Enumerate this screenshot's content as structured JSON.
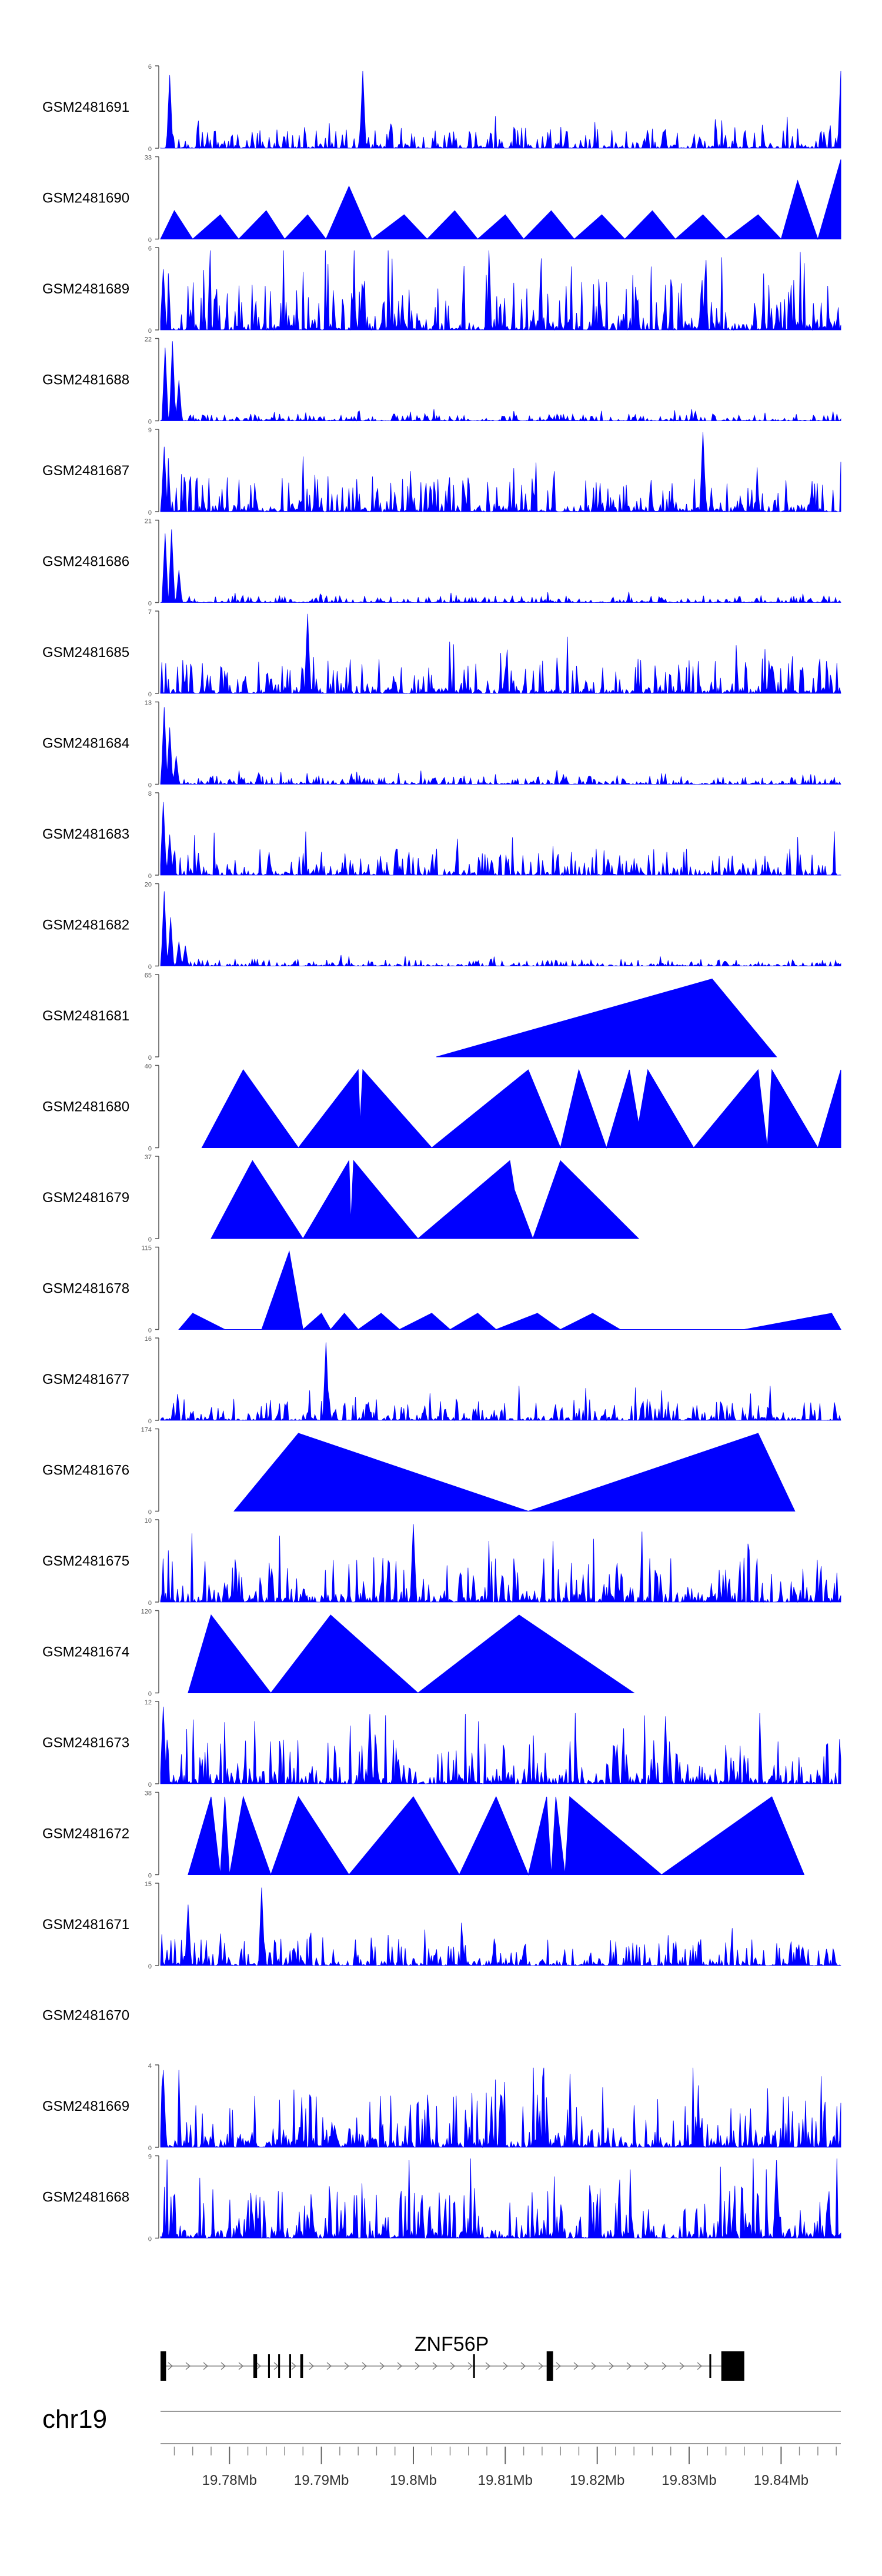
{
  "chart_data": {
    "type": "area",
    "title": "",
    "chromosome": "chr19",
    "xlim": [
      19.7725,
      19.8465
    ],
    "xlabel": "",
    "ylabel": "",
    "grid": false,
    "colors": {
      "signal": "#0000ff",
      "axis": "#555555",
      "gene": "#000000",
      "text": "#000000"
    },
    "xticks": {
      "values": [
        19.78,
        19.79,
        19.8,
        19.81,
        19.82,
        19.83,
        19.84
      ],
      "labels": [
        "19.78Mb",
        "19.79Mb",
        "19.8Mb",
        "19.81Mb",
        "19.82Mb",
        "19.83Mb",
        "19.84Mb"
      ],
      "minor_step": 0.002
    },
    "gene": {
      "name": "ZNF56P",
      "start": 19.7725,
      "end": 19.8335,
      "strand": "+",
      "exons": [
        [
          19.7725,
          19.7731
        ],
        [
          19.7826,
          19.783
        ],
        [
          19.7842,
          19.7844
        ],
        [
          19.7853,
          19.7855
        ],
        [
          19.7865,
          19.7867
        ],
        [
          19.7877,
          19.788
        ],
        [
          19.8065,
          19.8067
        ],
        [
          19.8145,
          19.8152
        ],
        [
          19.8322,
          19.8324
        ],
        [
          19.8335,
          19.8347
        ],
        [
          19.8347,
          19.836
        ]
      ]
    },
    "series": [
      {
        "name": "GSM2481691",
        "kind": "noise",
        "ymax": 6,
        "seed": 11,
        "base": 0.12,
        "peaks": [
          [
            19.7735,
            0.9
          ],
          [
            19.7945,
            0.95
          ],
          [
            19.8465,
            0.95
          ]
        ]
      },
      {
        "name": "GSM2481690",
        "kind": "triangles",
        "ymax": 33,
        "peaks": [
          [
            19.7725,
            0.0
          ],
          [
            19.774,
            0.35
          ],
          [
            19.776,
            0.0
          ],
          [
            19.779,
            0.3
          ],
          [
            19.781,
            0.0
          ],
          [
            19.784,
            0.35
          ],
          [
            19.786,
            0.0
          ],
          [
            19.7885,
            0.3
          ],
          [
            19.7905,
            0.0
          ],
          [
            19.793,
            0.65
          ],
          [
            19.7955,
            0.0
          ],
          [
            19.799,
            0.3
          ],
          [
            19.8015,
            0.0
          ],
          [
            19.8045,
            0.35
          ],
          [
            19.807,
            0.0
          ],
          [
            19.81,
            0.3
          ],
          [
            19.812,
            0.0
          ],
          [
            19.815,
            0.35
          ],
          [
            19.8175,
            0.0
          ],
          [
            19.8205,
            0.3
          ],
          [
            19.823,
            0.0
          ],
          [
            19.826,
            0.35
          ],
          [
            19.8285,
            0.0
          ],
          [
            19.8315,
            0.3
          ],
          [
            19.834,
            0.0
          ],
          [
            19.8375,
            0.3
          ],
          [
            19.84,
            0.0
          ],
          [
            19.8418,
            0.72
          ],
          [
            19.844,
            0.0
          ],
          [
            19.8465,
            0.98
          ]
        ]
      },
      {
        "name": "GSM2481689",
        "kind": "noise",
        "ymax": 6,
        "seed": 23,
        "base": 0.3,
        "peaks": [
          [
            19.7728,
            0.75
          ]
        ]
      },
      {
        "name": "GSM2481688",
        "kind": "noise",
        "ymax": 22,
        "seed": 37,
        "base": 0.04,
        "peaks": [
          [
            19.773,
            0.9
          ],
          [
            19.7738,
            0.98
          ],
          [
            19.7745,
            0.5
          ]
        ]
      },
      {
        "name": "GSM2481687",
        "kind": "noise",
        "ymax": 9,
        "seed": 41,
        "base": 0.2,
        "peaks": [
          [
            19.7729,
            0.8
          ],
          [
            19.8315,
            0.98
          ]
        ]
      },
      {
        "name": "GSM2481686",
        "kind": "noise",
        "ymax": 21,
        "seed": 53,
        "base": 0.04,
        "peaks": [
          [
            19.773,
            0.85
          ],
          [
            19.7737,
            0.9
          ],
          [
            19.7745,
            0.4
          ]
        ]
      },
      {
        "name": "GSM2481685",
        "kind": "noise",
        "ymax": 7,
        "seed": 61,
        "base": 0.2,
        "peaks": [
          [
            19.7885,
            0.98
          ]
        ]
      },
      {
        "name": "GSM2481684",
        "kind": "noise",
        "ymax": 13,
        "seed": 71,
        "base": 0.05,
        "peaks": [
          [
            19.7729,
            0.95
          ],
          [
            19.7735,
            0.7
          ],
          [
            19.7742,
            0.35
          ]
        ]
      },
      {
        "name": "GSM2481683",
        "kind": "noise",
        "ymax": 8,
        "seed": 83,
        "base": 0.15,
        "peaks": [
          [
            19.7728,
            0.9
          ],
          [
            19.7735,
            0.5
          ]
        ]
      },
      {
        "name": "GSM2481682",
        "kind": "noise",
        "ymax": 20,
        "seed": 97,
        "base": 0.04,
        "peaks": [
          [
            19.7729,
            0.92
          ],
          [
            19.7736,
            0.6
          ],
          [
            19.7745,
            0.3
          ],
          [
            19.7752,
            0.25
          ]
        ]
      },
      {
        "name": "GSM2481681",
        "kind": "triangles",
        "ymax": 65,
        "peaks": [
          [
            19.8025,
            0.0
          ],
          [
            19.8325,
            0.96
          ],
          [
            19.8395,
            0.0
          ]
        ]
      },
      {
        "name": "GSM2481680",
        "kind": "triangles",
        "ymax": 40,
        "peaks": [
          [
            19.777,
            0.0
          ],
          [
            19.7815,
            0.96
          ],
          [
            19.7875,
            0.0
          ],
          [
            19.794,
            0.96
          ],
          [
            19.7942,
            0.3
          ],
          [
            19.7945,
            0.96
          ],
          [
            19.802,
            0.0
          ],
          [
            19.8125,
            0.96
          ],
          [
            19.816,
            0.0
          ],
          [
            19.818,
            0.96
          ],
          [
            19.821,
            0.0
          ],
          [
            19.8235,
            0.96
          ],
          [
            19.8245,
            0.3
          ],
          [
            19.8255,
            0.96
          ],
          [
            19.8305,
            0.0
          ],
          [
            19.8375,
            0.96
          ],
          [
            19.8385,
            0.0
          ],
          [
            19.839,
            0.96
          ],
          [
            19.844,
            0.0
          ],
          [
            19.8465,
            0.96
          ]
        ]
      },
      {
        "name": "GSM2481679",
        "kind": "triangles",
        "ymax": 37,
        "peaks": [
          [
            19.778,
            0.0
          ],
          [
            19.7825,
            0.96
          ],
          [
            19.788,
            0.0
          ],
          [
            19.793,
            0.96
          ],
          [
            19.7932,
            0.2
          ],
          [
            19.7935,
            0.96
          ],
          [
            19.8005,
            0.0
          ],
          [
            19.8105,
            0.96
          ],
          [
            19.811,
            0.6
          ],
          [
            19.813,
            0.0
          ],
          [
            19.816,
            0.96
          ],
          [
            19.8245,
            0.0
          ]
        ]
      },
      {
        "name": "GSM2481678",
        "kind": "triangles",
        "ymax": 115,
        "peaks": [
          [
            19.7745,
            0.0
          ],
          [
            19.776,
            0.2
          ],
          [
            19.7795,
            0.0
          ],
          [
            19.7835,
            0.0
          ],
          [
            19.7865,
            0.96
          ],
          [
            19.788,
            0.0
          ],
          [
            19.79,
            0.2
          ],
          [
            19.791,
            0.0
          ],
          [
            19.7925,
            0.2
          ],
          [
            19.794,
            0.0
          ],
          [
            19.7965,
            0.2
          ],
          [
            19.7985,
            0.0
          ],
          [
            19.802,
            0.2
          ],
          [
            19.804,
            0.0
          ],
          [
            19.807,
            0.2
          ],
          [
            19.809,
            0.0
          ],
          [
            19.8135,
            0.2
          ],
          [
            19.816,
            0.0
          ],
          [
            19.8195,
            0.2
          ],
          [
            19.8225,
            0.0
          ],
          [
            19.836,
            0.0
          ],
          [
            19.8455,
            0.2
          ],
          [
            19.8465,
            0.0
          ]
        ]
      },
      {
        "name": "GSM2481677",
        "kind": "noise",
        "ymax": 16,
        "seed": 109,
        "base": 0.12,
        "peaks": [
          [
            19.7905,
            0.96
          ]
        ]
      },
      {
        "name": "GSM2481676",
        "kind": "triangles",
        "ymax": 174,
        "peaks": [
          [
            19.7805,
            0.0
          ],
          [
            19.7875,
            0.96
          ],
          [
            19.8125,
            0.0
          ],
          [
            19.8375,
            0.96
          ],
          [
            19.8415,
            0.0
          ]
        ]
      },
      {
        "name": "GSM2481675",
        "kind": "noise",
        "ymax": 10,
        "seed": 127,
        "base": 0.25,
        "peaks": [
          [
            19.8,
            0.96
          ]
        ]
      },
      {
        "name": "GSM2481674",
        "kind": "triangles",
        "ymax": 120,
        "peaks": [
          [
            19.7755,
            0.0
          ],
          [
            19.778,
            0.96
          ],
          [
            19.7845,
            0.0
          ],
          [
            19.791,
            0.96
          ],
          [
            19.8005,
            0.0
          ],
          [
            19.8115,
            0.96
          ],
          [
            19.824,
            0.0
          ]
        ]
      },
      {
        "name": "GSM2481673",
        "kind": "noise",
        "ymax": 12,
        "seed": 139,
        "base": 0.25,
        "peaks": [
          [
            19.7728,
            0.95
          ]
        ]
      },
      {
        "name": "GSM2481672",
        "kind": "triangles",
        "ymax": 38,
        "peaks": [
          [
            19.7755,
            0.0
          ],
          [
            19.778,
            0.96
          ],
          [
            19.779,
            0.0
          ],
          [
            19.7795,
            0.96
          ],
          [
            19.78,
            0.0
          ],
          [
            19.7815,
            0.96
          ],
          [
            19.7845,
            0.0
          ],
          [
            19.7875,
            0.96
          ],
          [
            19.793,
            0.0
          ],
          [
            19.8,
            0.96
          ],
          [
            19.805,
            0.0
          ],
          [
            19.809,
            0.96
          ],
          [
            19.8125,
            0.0
          ],
          [
            19.8145,
            0.96
          ],
          [
            19.815,
            0.0
          ],
          [
            19.8155,
            0.96
          ],
          [
            19.8165,
            0.0
          ],
          [
            19.817,
            0.96
          ],
          [
            19.827,
            0.0
          ],
          [
            19.839,
            0.96
          ],
          [
            19.8425,
            0.0
          ]
        ]
      },
      {
        "name": "GSM2481671",
        "kind": "noise",
        "ymax": 15,
        "seed": 151,
        "base": 0.15,
        "peaks": [
          [
            19.7755,
            0.75
          ],
          [
            19.7835,
            0.96
          ]
        ]
      },
      {
        "name": "GSM2481670",
        "kind": "empty",
        "ymax": null
      },
      {
        "name": "GSM2481669",
        "kind": "noise",
        "ymax": 4,
        "seed": 163,
        "base": 0.3,
        "peaks": [
          [
            19.7728,
            0.95
          ]
        ]
      },
      {
        "name": "GSM2481668",
        "kind": "noise",
        "ymax": 9,
        "seed": 179,
        "base": 0.3,
        "peaks": [
          [
            19.8395,
            0.96
          ]
        ]
      }
    ]
  }
}
